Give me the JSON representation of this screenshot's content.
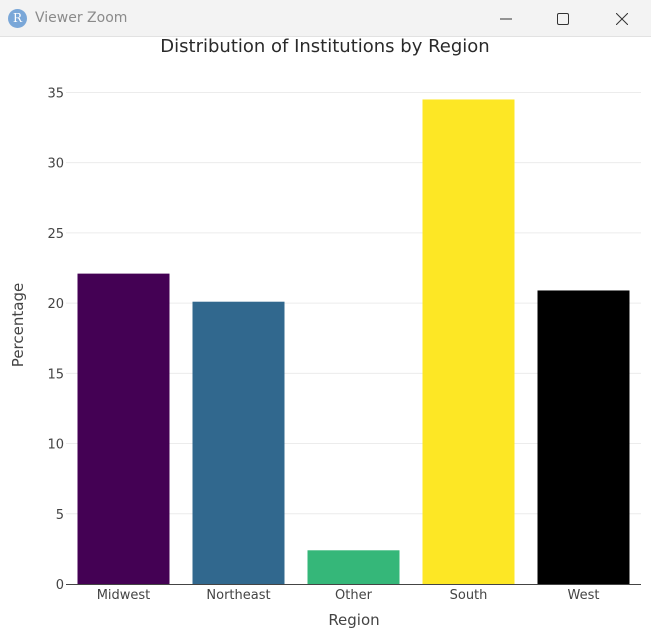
{
  "window": {
    "title": "Viewer Zoom",
    "app_icon_letter": "R",
    "icons": {
      "app": "r-logo-icon",
      "minimize": "minimize-icon",
      "maximize": "maximize-icon",
      "close": "close-icon"
    }
  },
  "chart_data": {
    "type": "bar",
    "title": "Distribution of Institutions by Region",
    "xlabel": "Region",
    "ylabel": "Percentage",
    "categories": [
      "Midwest",
      "Northeast",
      "Other",
      "South",
      "West"
    ],
    "values": [
      22.1,
      20.1,
      2.4,
      34.5,
      20.9
    ],
    "colors": [
      "#440154",
      "#31688E",
      "#35B779",
      "#FDE725",
      "#000000"
    ],
    "ylim": [
      0,
      36.1
    ],
    "yticks": [
      0,
      5,
      10,
      15,
      20,
      25,
      30,
      35
    ],
    "ytick_labels": [
      "0",
      "5",
      "10",
      "15",
      "20",
      "25",
      "30",
      "35"
    ],
    "grid": true,
    "legend": "none"
  }
}
